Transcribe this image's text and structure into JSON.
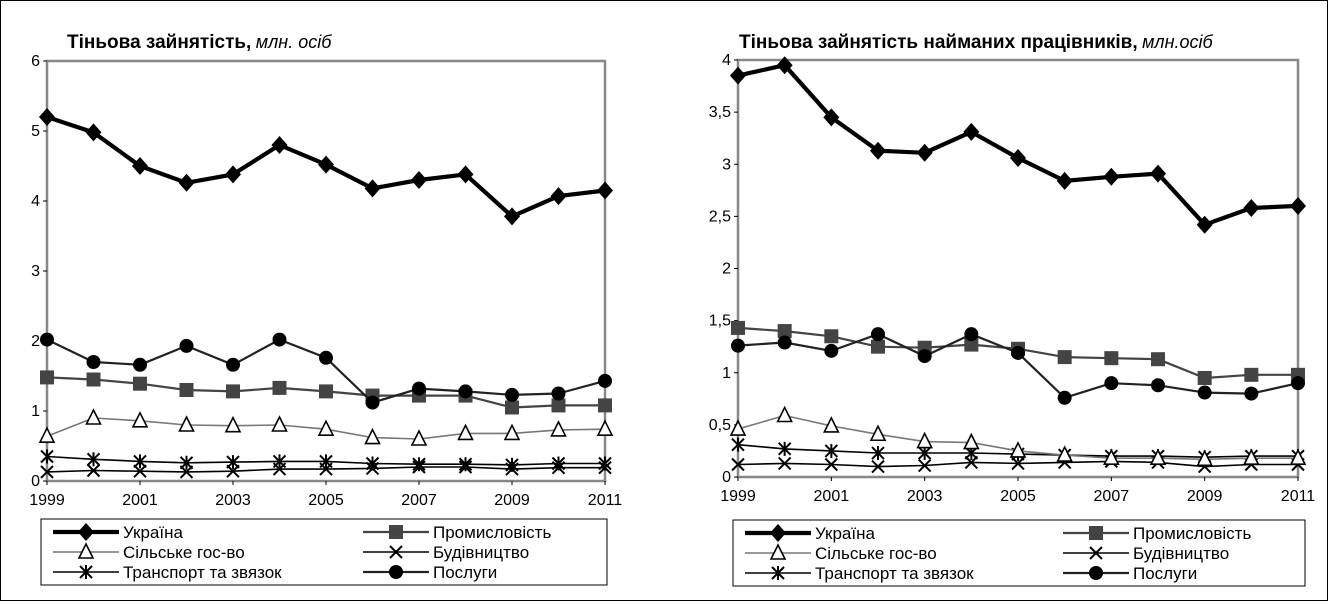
{
  "charts": [
    {
      "title_main": "Тіньова зайнятість,",
      "title_unit": "млн. осіб"
    },
    {
      "title_main": "Тіньова зайнятість найманих працівників,",
      "title_unit": "млн.осіб"
    }
  ],
  "chart_data": [
    {
      "type": "line",
      "title": "Тіньова зайнятість, млн. осіб",
      "x": [
        1999,
        2000,
        2001,
        2002,
        2003,
        2004,
        2005,
        2006,
        2007,
        2008,
        2009,
        2010,
        2011
      ],
      "x_tick_labels": [
        "1999",
        "2001",
        "2003",
        "2005",
        "2007",
        "2009",
        "2011"
      ],
      "y_tick_labels": [
        "0",
        "1",
        "2",
        "3",
        "4",
        "5",
        "6"
      ],
      "ylim": [
        0,
        6
      ],
      "grid": false,
      "legend_position": "bottom",
      "series": [
        {
          "name": "Україна",
          "marker": "diamond",
          "values": [
            5.2,
            4.98,
            4.5,
            4.26,
            4.38,
            4.8,
            4.52,
            4.18,
            4.3,
            4.38,
            3.78,
            4.07,
            4.15
          ]
        },
        {
          "name": "Промисловість",
          "marker": "square",
          "values": [
            1.48,
            1.45,
            1.39,
            1.3,
            1.28,
            1.33,
            1.28,
            1.22,
            1.22,
            1.22,
            1.05,
            1.08,
            1.08
          ]
        },
        {
          "name": "Сільське гос-во",
          "marker": "triangle",
          "values": [
            0.64,
            0.9,
            0.86,
            0.8,
            0.79,
            0.8,
            0.74,
            0.62,
            0.6,
            0.68,
            0.68,
            0.73,
            0.74
          ]
        },
        {
          "name": "Будівництво",
          "marker": "x",
          "values": [
            0.13,
            0.15,
            0.14,
            0.13,
            0.14,
            0.17,
            0.17,
            0.18,
            0.2,
            0.2,
            0.17,
            0.19,
            0.19
          ]
        },
        {
          "name": "Транспорт та звязок",
          "marker": "asterisk",
          "values": [
            0.35,
            0.31,
            0.28,
            0.26,
            0.27,
            0.28,
            0.28,
            0.25,
            0.24,
            0.24,
            0.23,
            0.25,
            0.25
          ]
        },
        {
          "name": "Послуги",
          "marker": "circle",
          "values": [
            2.02,
            1.7,
            1.66,
            1.93,
            1.66,
            2.02,
            1.76,
            1.12,
            1.32,
            1.28,
            1.23,
            1.25,
            1.43
          ]
        }
      ]
    },
    {
      "type": "line",
      "title": "Тіньова зайнятість найманих працівників, млн.осіб",
      "x": [
        1999,
        2000,
        2001,
        2002,
        2003,
        2004,
        2005,
        2006,
        2007,
        2008,
        2009,
        2010,
        2011
      ],
      "x_tick_labels": [
        "1999",
        "2001",
        "2003",
        "2005",
        "2007",
        "2009",
        "2011"
      ],
      "y_tick_labels": [
        "0",
        "0,5",
        "1",
        "1,5",
        "2",
        "2,5",
        "3",
        "3,5",
        "4"
      ],
      "ylim": [
        0,
        4
      ],
      "grid": false,
      "legend_position": "bottom",
      "series": [
        {
          "name": "Україна",
          "marker": "diamond",
          "values": [
            3.85,
            3.95,
            3.45,
            3.13,
            3.11,
            3.31,
            3.06,
            2.84,
            2.88,
            2.91,
            2.42,
            2.58,
            2.6
          ]
        },
        {
          "name": "Промисловість",
          "marker": "square",
          "values": [
            1.43,
            1.4,
            1.35,
            1.25,
            1.24,
            1.27,
            1.23,
            1.15,
            1.14,
            1.13,
            0.95,
            0.98,
            0.98
          ]
        },
        {
          "name": "Сільське гос-во",
          "marker": "triangle",
          "values": [
            0.46,
            0.59,
            0.49,
            0.41,
            0.34,
            0.33,
            0.25,
            0.21,
            0.18,
            0.18,
            0.17,
            0.18,
            0.18
          ]
        },
        {
          "name": "Будівництво",
          "marker": "x",
          "values": [
            0.12,
            0.13,
            0.12,
            0.1,
            0.11,
            0.14,
            0.13,
            0.14,
            0.15,
            0.14,
            0.1,
            0.12,
            0.12
          ]
        },
        {
          "name": "Транспорт та звязок",
          "marker": "asterisk",
          "values": [
            0.31,
            0.27,
            0.25,
            0.23,
            0.23,
            0.23,
            0.22,
            0.21,
            0.2,
            0.2,
            0.19,
            0.2,
            0.2
          ]
        },
        {
          "name": "Послуги",
          "marker": "circle",
          "values": [
            1.26,
            1.29,
            1.21,
            1.37,
            1.16,
            1.37,
            1.19,
            0.76,
            0.9,
            0.88,
            0.81,
            0.8,
            0.9
          ]
        }
      ]
    }
  ]
}
